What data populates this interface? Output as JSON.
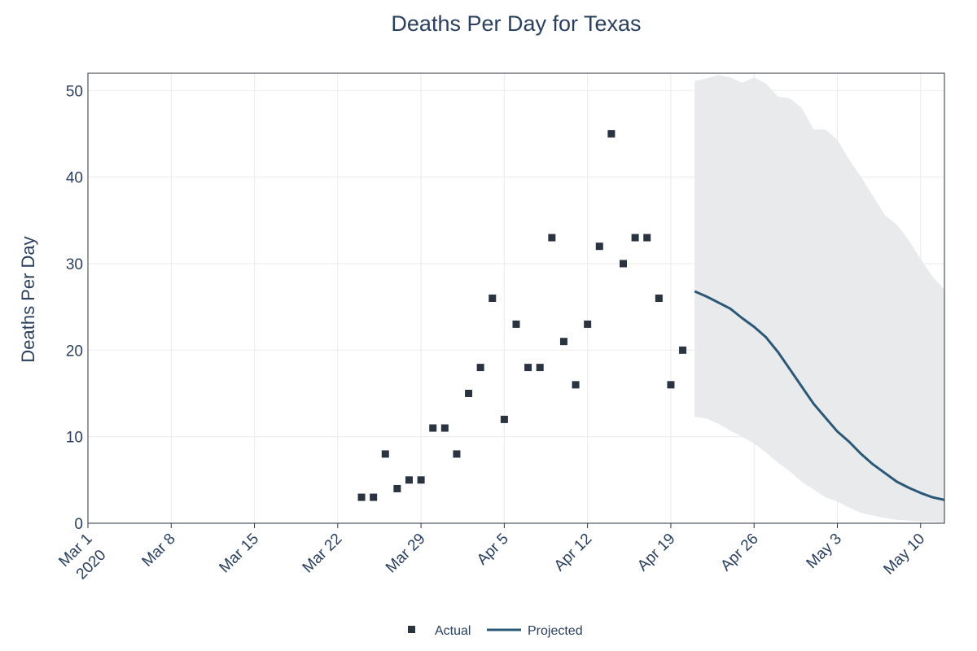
{
  "chart_data": {
    "type": "scatter",
    "title": "Deaths Per Day for Texas",
    "xlabel": "",
    "ylabel": "Deaths Per Day",
    "xlim": [
      "2020-03-01",
      "2020-05-12"
    ],
    "ylim": [
      0,
      52
    ],
    "grid": true,
    "legend_position": "bottom-center",
    "x_ticks": [
      {
        "date": "2020-03-01",
        "label": "Mar 1",
        "sublabel": "2020"
      },
      {
        "date": "2020-03-08",
        "label": "Mar 8"
      },
      {
        "date": "2020-03-15",
        "label": "Mar 15"
      },
      {
        "date": "2020-03-22",
        "label": "Mar 22"
      },
      {
        "date": "2020-03-29",
        "label": "Mar 29"
      },
      {
        "date": "2020-04-05",
        "label": "Apr 5"
      },
      {
        "date": "2020-04-12",
        "label": "Apr 12"
      },
      {
        "date": "2020-04-19",
        "label": "Apr 19"
      },
      {
        "date": "2020-04-26",
        "label": "Apr 26"
      },
      {
        "date": "2020-05-03",
        "label": "May 3"
      },
      {
        "date": "2020-05-10",
        "label": "May 10"
      }
    ],
    "y_ticks": [
      0,
      10,
      20,
      30,
      40,
      50
    ],
    "series": [
      {
        "name": "Actual",
        "kind": "markers",
        "color": "#2a3440",
        "points": [
          {
            "x": "2020-03-24",
            "y": 3
          },
          {
            "x": "2020-03-25",
            "y": 3
          },
          {
            "x": "2020-03-26",
            "y": 8
          },
          {
            "x": "2020-03-27",
            "y": 4
          },
          {
            "x": "2020-03-28",
            "y": 5
          },
          {
            "x": "2020-03-29",
            "y": 5
          },
          {
            "x": "2020-03-30",
            "y": 11
          },
          {
            "x": "2020-03-31",
            "y": 11
          },
          {
            "x": "2020-04-01",
            "y": 8
          },
          {
            "x": "2020-04-02",
            "y": 15
          },
          {
            "x": "2020-04-03",
            "y": 18
          },
          {
            "x": "2020-04-04",
            "y": 26
          },
          {
            "x": "2020-04-05",
            "y": 12
          },
          {
            "x": "2020-04-06",
            "y": 23
          },
          {
            "x": "2020-04-07",
            "y": 18
          },
          {
            "x": "2020-04-08",
            "y": 18
          },
          {
            "x": "2020-04-09",
            "y": 33
          },
          {
            "x": "2020-04-10",
            "y": 21
          },
          {
            "x": "2020-04-11",
            "y": 16
          },
          {
            "x": "2020-04-12",
            "y": 23
          },
          {
            "x": "2020-04-13",
            "y": 32
          },
          {
            "x": "2020-04-14",
            "y": 45
          },
          {
            "x": "2020-04-15",
            "y": 30
          },
          {
            "x": "2020-04-16",
            "y": 33
          },
          {
            "x": "2020-04-17",
            "y": 33
          },
          {
            "x": "2020-04-18",
            "y": 26
          },
          {
            "x": "2020-04-19",
            "y": 16
          },
          {
            "x": "2020-04-20",
            "y": 20
          }
        ]
      },
      {
        "name": "Projected",
        "kind": "line",
        "color": "#2b5876",
        "band_color": "#e9eaec",
        "points": [
          {
            "x": "2020-04-21",
            "y": 26.8,
            "lower": 12.3,
            "upper": 51.1
          },
          {
            "x": "2020-04-22",
            "y": 26.2,
            "lower": 12.1,
            "upper": 51.4
          },
          {
            "x": "2020-04-23",
            "y": 25.5,
            "lower": 11.5,
            "upper": 51.8
          },
          {
            "x": "2020-04-24",
            "y": 24.8,
            "lower": 10.7,
            "upper": 51.5
          },
          {
            "x": "2020-04-25",
            "y": 23.7,
            "lower": 10.0,
            "upper": 50.9
          },
          {
            "x": "2020-04-26",
            "y": 22.7,
            "lower": 9.2,
            "upper": 51.5
          },
          {
            "x": "2020-04-27",
            "y": 21.5,
            "lower": 8.2,
            "upper": 50.8
          },
          {
            "x": "2020-04-28",
            "y": 19.8,
            "lower": 7.0,
            "upper": 49.3
          },
          {
            "x": "2020-04-29",
            "y": 17.8,
            "lower": 6.0,
            "upper": 49.1
          },
          {
            "x": "2020-04-30",
            "y": 15.8,
            "lower": 4.8,
            "upper": 48.0
          },
          {
            "x": "2020-05-01",
            "y": 13.8,
            "lower": 3.9,
            "upper": 45.5
          },
          {
            "x": "2020-05-02",
            "y": 12.2,
            "lower": 3.0,
            "upper": 45.5
          },
          {
            "x": "2020-05-03",
            "y": 10.6,
            "lower": 2.5,
            "upper": 44.3
          },
          {
            "x": "2020-05-04",
            "y": 9.4,
            "lower": 1.8,
            "upper": 42.0
          },
          {
            "x": "2020-05-05",
            "y": 8.0,
            "lower": 1.2,
            "upper": 40.0
          },
          {
            "x": "2020-05-06",
            "y": 6.8,
            "lower": 0.9,
            "upper": 37.8
          },
          {
            "x": "2020-05-07",
            "y": 5.8,
            "lower": 0.6,
            "upper": 35.6
          },
          {
            "x": "2020-05-08",
            "y": 4.8,
            "lower": 0.4,
            "upper": 34.5
          },
          {
            "x": "2020-05-09",
            "y": 4.1,
            "lower": 0.3,
            "upper": 32.7
          },
          {
            "x": "2020-05-10",
            "y": 3.5,
            "lower": 0.2,
            "upper": 30.5
          },
          {
            "x": "2020-05-11",
            "y": 3.0,
            "lower": 0.2,
            "upper": 28.5
          },
          {
            "x": "2020-05-12",
            "y": 2.7,
            "lower": 0.1,
            "upper": 27.0
          }
        ]
      }
    ]
  }
}
